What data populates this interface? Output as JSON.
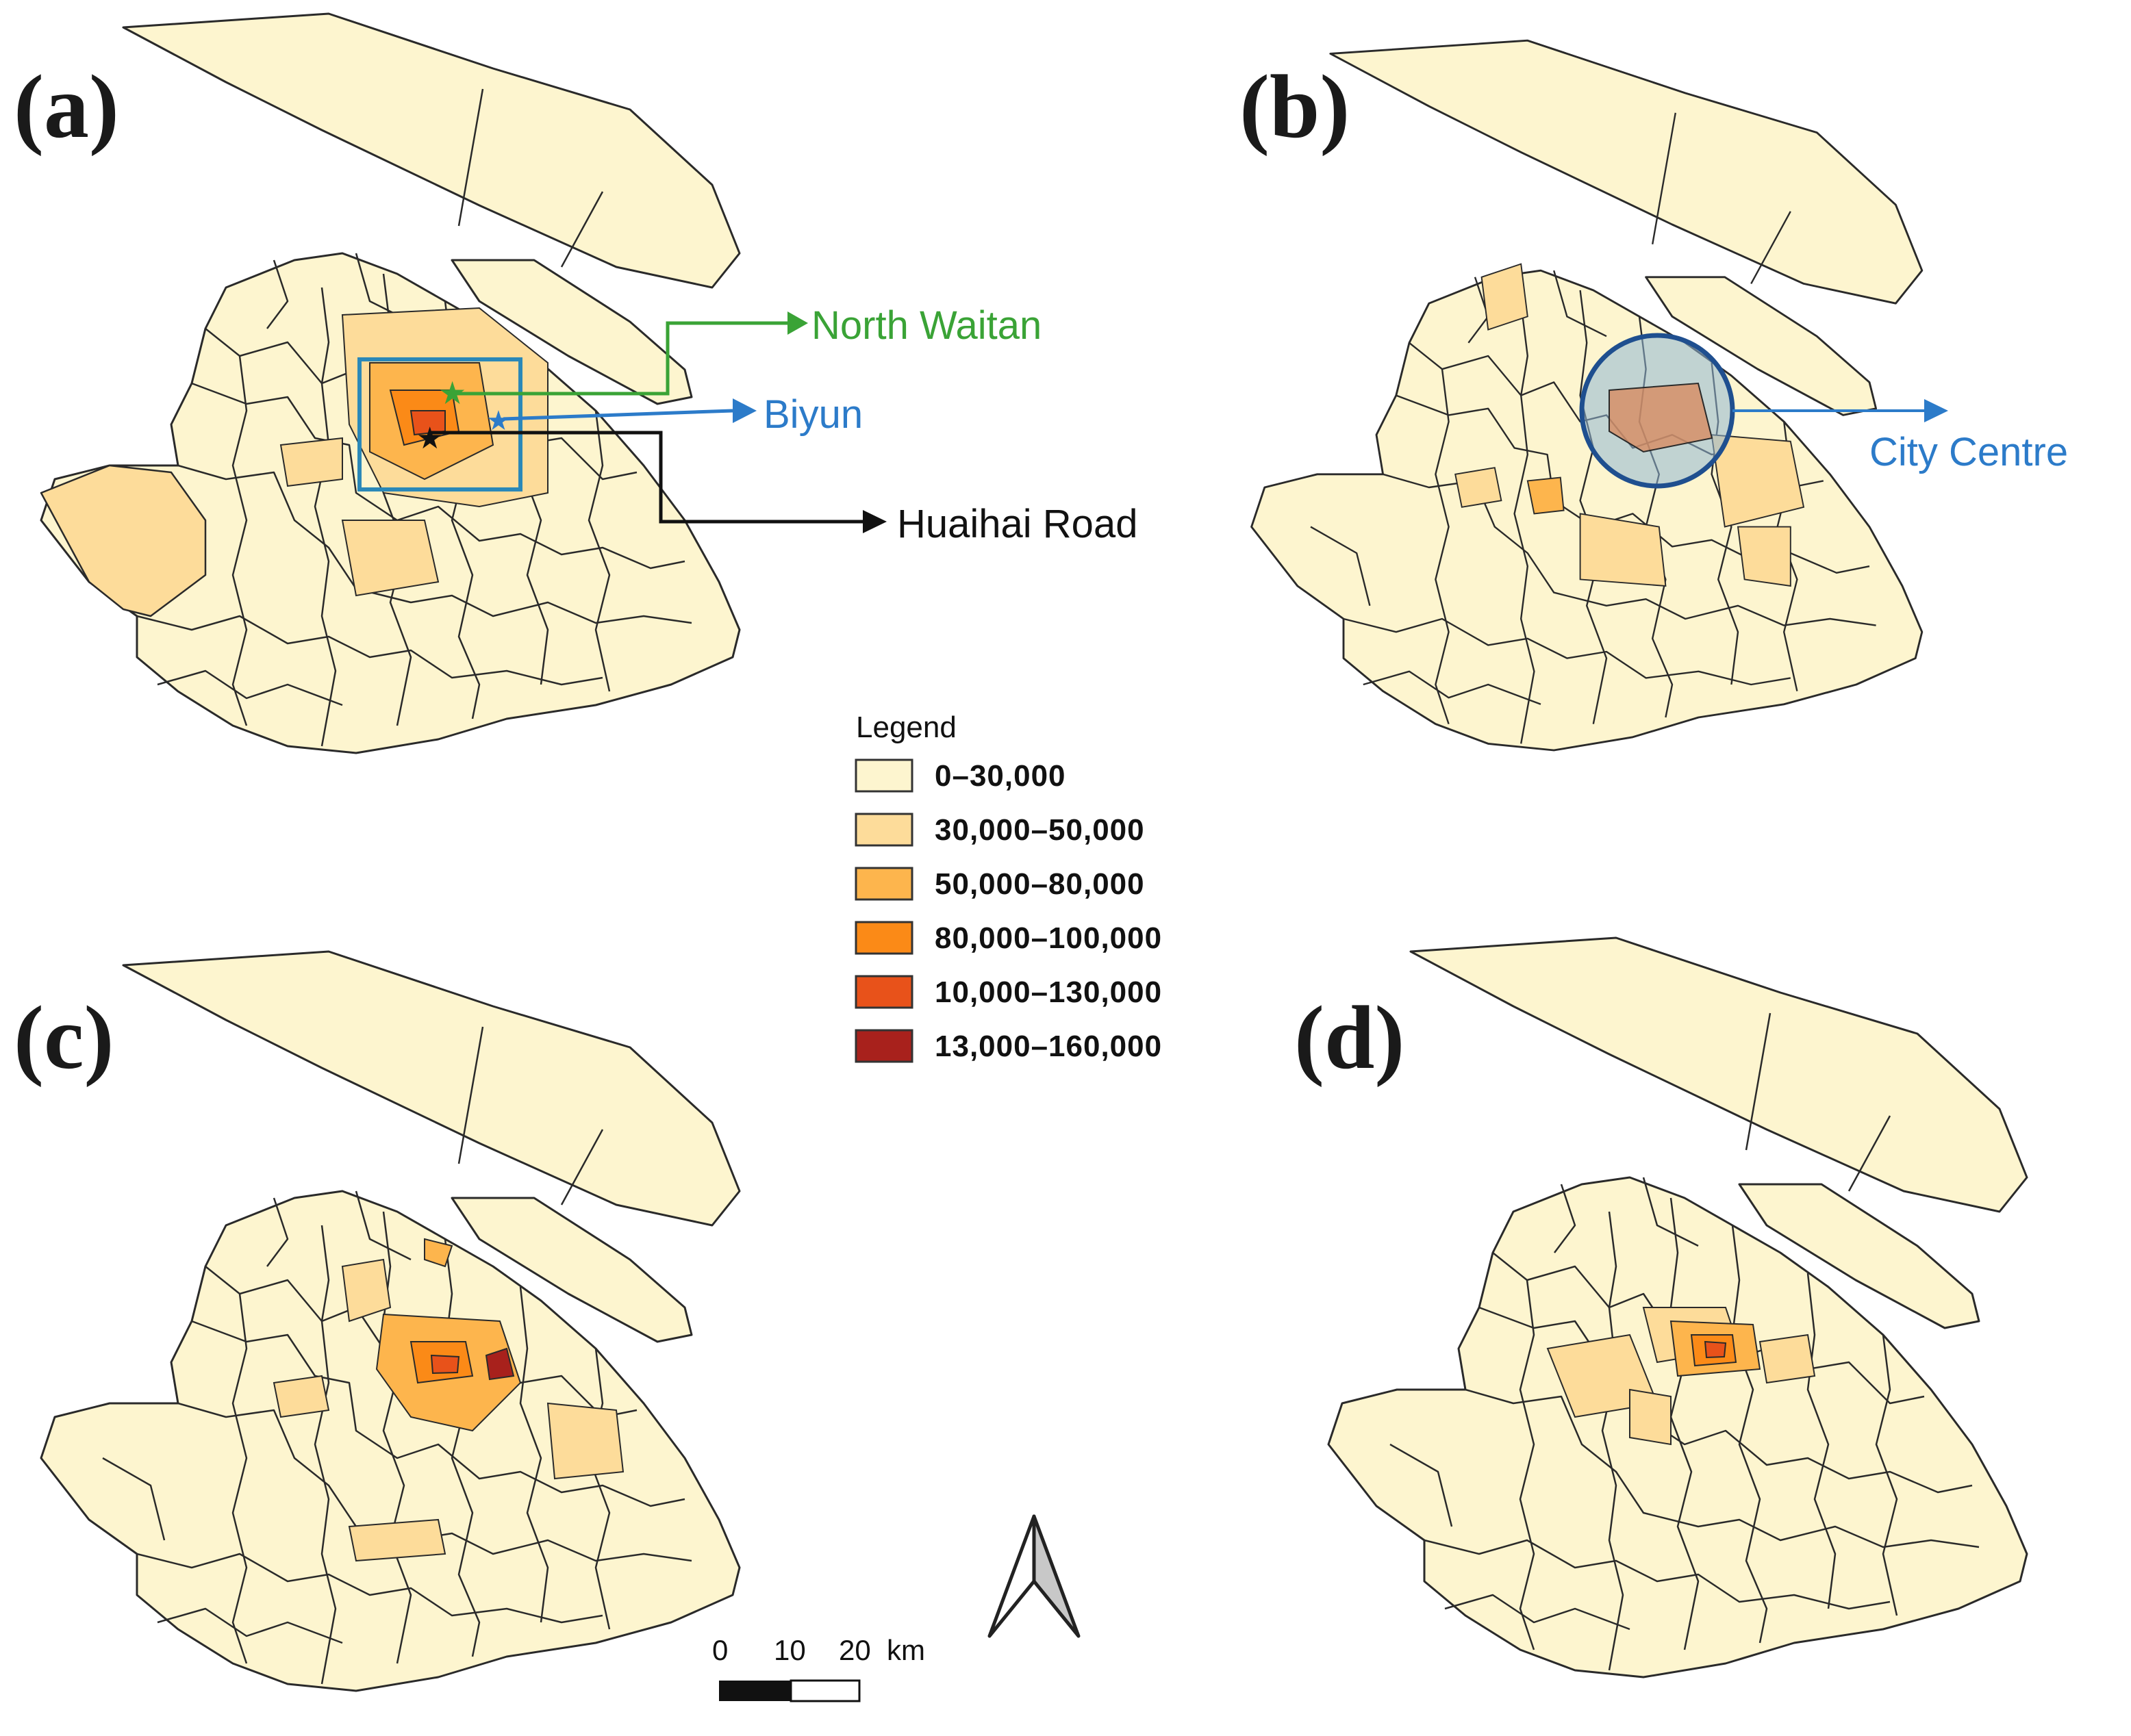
{
  "panels": [
    {
      "id": "a",
      "label": "(a)"
    },
    {
      "id": "b",
      "label": "(b)"
    },
    {
      "id": "c",
      "label": "(c)"
    },
    {
      "id": "d",
      "label": "(d)"
    }
  ],
  "annotations": {
    "north_waitan": "North Waitan",
    "biyun": "Biyun",
    "huaihai_road": "Huaihai Road",
    "city_centre": "City Centre"
  },
  "legend": {
    "title": "Legend",
    "classes": [
      {
        "label": "0–30,000",
        "color": "#fdf5cf"
      },
      {
        "label": "30,000–50,000",
        "color": "#fddc9a"
      },
      {
        "label": "50,000–80,000",
        "color": "#fdb54d"
      },
      {
        "label": "80,000–100,000",
        "color": "#fb8a17"
      },
      {
        "label": "10,000–130,000",
        "color": "#e8521a"
      },
      {
        "label": "13,000–160,000",
        "color": "#a8211c"
      }
    ]
  },
  "scale_bar": {
    "labels": [
      "0",
      "10",
      "20"
    ],
    "unit": "km"
  },
  "colors": {
    "north_waitan": "#3aa336",
    "biyun": "#2c7bc9",
    "huaihai_road": "#111111",
    "city_centre": "#2c7bc9",
    "focus_box": "#2b88b8",
    "circle_stroke": "#1f4f8f"
  }
}
